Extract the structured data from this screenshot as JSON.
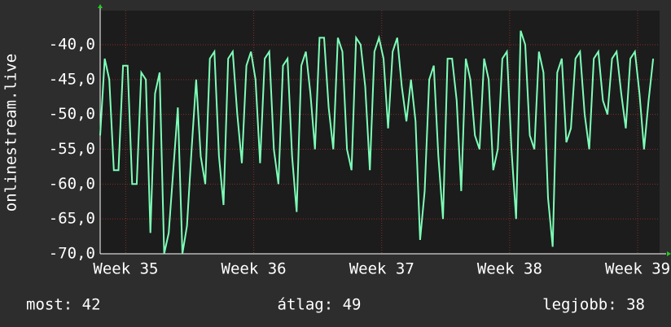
{
  "chart_data": {
    "type": "line",
    "y_label": "onlinestream.live",
    "annotations": [
      "most: 42",
      "átlag: 49",
      "legjobb: 38"
    ],
    "x": [
      0,
      0.25,
      0.5,
      0.75,
      1,
      1.25,
      1.5,
      1.75,
      2,
      2.25,
      2.5,
      2.75,
      3,
      3.25,
      3.5,
      3.75,
      4,
      4.25,
      4.5,
      4.75,
      5,
      5.25,
      5.5,
      5.75,
      6,
      6.25,
      6.5,
      6.75,
      7,
      7.25,
      7.5,
      7.75,
      8,
      8.25,
      8.5,
      8.75,
      9,
      9.25,
      9.5,
      9.75,
      10,
      10.25,
      10.5,
      10.75,
      11,
      11.25,
      11.5,
      11.75,
      12,
      12.25,
      12.5,
      12.75,
      13,
      13.25,
      13.5,
      13.75,
      14,
      14.25,
      14.5,
      14.75,
      15,
      15.25,
      15.5,
      15.75,
      16,
      16.25,
      16.5,
      16.75,
      17,
      17.25,
      17.5,
      17.75,
      18,
      18.25,
      18.5,
      18.75,
      19,
      19.25,
      19.5,
      19.75,
      20,
      20.25,
      20.5,
      20.75,
      21,
      21.25,
      21.5,
      21.75,
      22,
      22.25,
      22.5,
      22.75,
      23,
      23.25,
      23.5,
      23.75,
      24,
      24.25,
      24.5,
      24.75,
      25,
      25.25,
      25.5,
      25.75,
      26,
      26.25,
      26.5,
      26.75,
      27,
      27.25,
      27.5,
      27.75,
      28,
      28.25,
      28.5,
      28.75,
      29,
      29.25,
      29.5,
      29.75,
      30,
      30.25
    ],
    "series": [
      {
        "name": "onlinestream.live",
        "color": "#7dffb8",
        "values": [
          -53,
          -42,
          -45,
          -58,
          -58,
          -43,
          -43,
          -60,
          -60,
          -44,
          -45,
          -67,
          -47,
          -44,
          -70,
          -67,
          -58,
          -49,
          -70,
          -66,
          -55,
          -45,
          -56,
          -60,
          -42,
          -41,
          -56,
          -63,
          -42,
          -41,
          -50,
          -57,
          -43,
          -41,
          -45,
          -57,
          -42,
          -41,
          -55,
          -60,
          -43,
          -42,
          -56,
          -64,
          -43,
          -41,
          -47,
          -55,
          -39,
          -39,
          -49,
          -55,
          -39,
          -41,
          -55,
          -58,
          -39,
          -40,
          -46,
          -58,
          -41,
          -39,
          -42,
          -52,
          -41,
          -39,
          -46,
          -51,
          -45,
          -51,
          -68,
          -61,
          -45,
          -43,
          -56,
          -65,
          -42,
          -42,
          -48,
          -61,
          -42,
          -45,
          -53,
          -55,
          -42,
          -45,
          -58,
          -55,
          -42,
          -41,
          -55,
          -65,
          -38,
          -40,
          -53,
          -55,
          -41,
          -44,
          -62,
          -69,
          -44,
          -42,
          -54,
          -52,
          -42,
          -41,
          -50,
          -55,
          -42,
          -41,
          -48,
          -50,
          -42,
          -41,
          -47,
          -52,
          -42,
          -41,
          -47,
          -55,
          -48,
          -42
        ]
      }
    ],
    "xlim": [
      0,
      30.6
    ],
    "xticks": [
      {
        "value": 1.4,
        "label": "Week 35"
      },
      {
        "value": 8.4,
        "label": "Week 36"
      },
      {
        "value": 15.4,
        "label": "Week 37"
      },
      {
        "value": 22.4,
        "label": "Week 38"
      },
      {
        "value": 29.4,
        "label": "Week 39"
      }
    ],
    "ylim": [
      -70,
      -35.1
    ],
    "yticks": [
      {
        "value": -70,
        "label": "-70,0"
      },
      {
        "value": -65,
        "label": "-65,0"
      },
      {
        "value": -60,
        "label": "-60,0"
      },
      {
        "value": -55,
        "label": "-55,0"
      },
      {
        "value": -50,
        "label": "-50,0"
      },
      {
        "value": -45,
        "label": "-45,0"
      },
      {
        "value": -40,
        "label": "-40,0"
      }
    ],
    "grid": true
  }
}
